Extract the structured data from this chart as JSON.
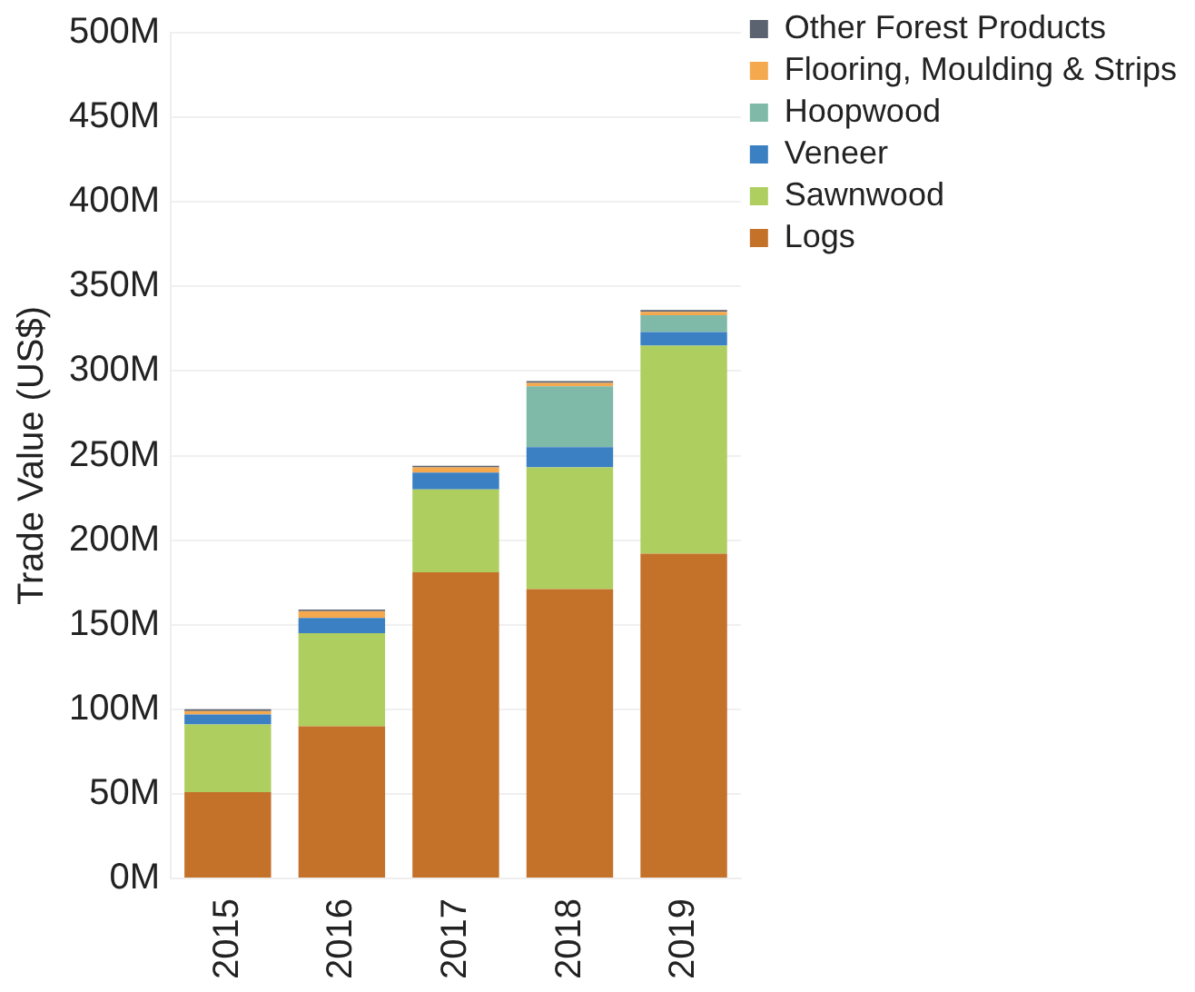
{
  "chart_data": {
    "type": "bar",
    "stacked": true,
    "ylabel": "Trade Value (US$)",
    "categories": [
      "2015",
      "2016",
      "2017",
      "2018",
      "2019"
    ],
    "series": [
      {
        "name": "Logs",
        "color": "#c4712a",
        "values": [
          51,
          90,
          181,
          171,
          192
        ]
      },
      {
        "name": "Sawnwood",
        "color": "#aecf5f",
        "values": [
          40,
          55,
          49,
          72,
          123
        ]
      },
      {
        "name": "Veneer",
        "color": "#3a80c3",
        "values": [
          6,
          9,
          10,
          12,
          8
        ]
      },
      {
        "name": "Hoopwood",
        "color": "#7fb9a8",
        "values": [
          0,
          0,
          0,
          36,
          10
        ]
      },
      {
        "name": "Flooring, Moulding & Strips",
        "color": "#f5a94f",
        "values": [
          2,
          4,
          3,
          2,
          2
        ]
      },
      {
        "name": "Other Forest Products",
        "color": "#5b6270",
        "values": [
          1,
          1,
          1,
          1,
          1
        ]
      }
    ],
    "ylim": [
      0,
      500
    ],
    "yticks": [
      {
        "value": 0,
        "label": "0M"
      },
      {
        "value": 50,
        "label": "50M"
      },
      {
        "value": 100,
        "label": "100M"
      },
      {
        "value": 150,
        "label": "150M"
      },
      {
        "value": 200,
        "label": "200M"
      },
      {
        "value": 250,
        "label": "250M"
      },
      {
        "value": 300,
        "label": "300M"
      },
      {
        "value": 350,
        "label": "350M"
      },
      {
        "value": 400,
        "label": "400M"
      },
      {
        "value": 450,
        "label": "450M"
      },
      {
        "value": 500,
        "label": "500M"
      }
    ],
    "grid": "y",
    "legend": "top right"
  }
}
